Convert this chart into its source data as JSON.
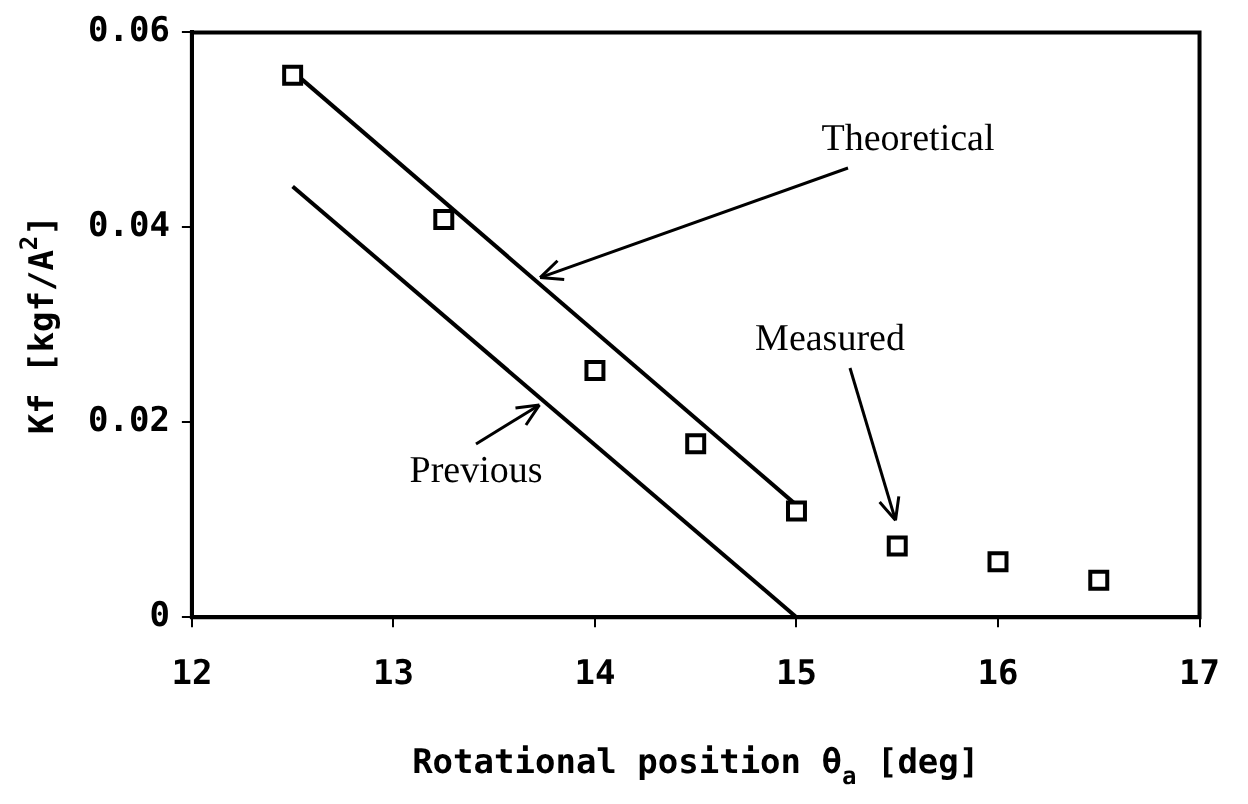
{
  "chart_data": {
    "type": "scatter",
    "xlabel": "Rotational position θ$_{a}$ [deg]",
    "ylabel": "Kf [kgf/A$^{2}$]",
    "xlim": [
      12,
      17
    ],
    "xticks": [
      12,
      13,
      14,
      15,
      16,
      17
    ],
    "ylim": [
      0,
      0.06
    ],
    "yticks": [
      0,
      0.02,
      0.04,
      0.06
    ],
    "grid": false,
    "series": [
      {
        "name": "Measured",
        "type": "scatter",
        "marker": "square",
        "color": "#000000",
        "x": [
          12.5,
          13.25,
          14,
          14.5,
          15,
          15.5,
          16,
          16.5
        ],
        "values": [
          0.0556,
          0.0408,
          0.0253,
          0.0178,
          0.0109,
          0.0073,
          0.0057,
          0.0038
        ]
      },
      {
        "name": "Theoretical",
        "type": "line",
        "marker": "none",
        "color": "#000000",
        "x": [
          12.5,
          15
        ],
        "values": [
          0.056,
          0.0115
        ]
      },
      {
        "name": "Previous",
        "type": "line",
        "marker": "none",
        "color": "#000000",
        "x": [
          12.5,
          15
        ],
        "values": [
          0.0442,
          0
        ]
      }
    ]
  }
}
